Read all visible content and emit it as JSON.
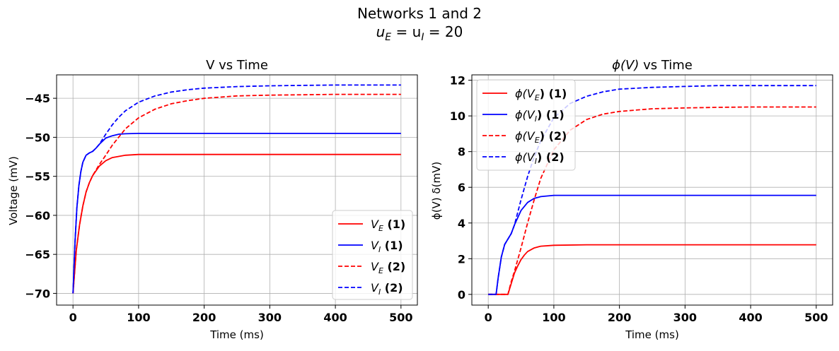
{
  "figure": {
    "suptitle_line1": "Networks 1 and 2",
    "suptitle_line2_base": "u",
    "suptitle_line2_sub1": "E",
    "suptitle_line2_mid": " = u",
    "suptitle_line2_sub2": "I",
    "suptitle_line2_end": " = 20"
  },
  "chart_data": [
    {
      "type": "line",
      "title": "V vs Time",
      "xlabel": "Time (ms)",
      "ylabel": "Voltage (mV)",
      "xlim": [
        -25,
        525
      ],
      "ylim": [
        -71.5,
        -42
      ],
      "xticks": [
        0,
        100,
        200,
        300,
        400,
        500
      ],
      "yticks": [
        -70,
        -65,
        -60,
        -55,
        -50,
        -45
      ],
      "grid": true,
      "legend_position": "lower-right",
      "series": [
        {
          "name": "V_E (1)",
          "label_base": "V",
          "label_sub": "E",
          "label_suffix": " (1)",
          "color": "#ff0000",
          "dash": "solid",
          "x": [
            0,
            5,
            10,
            15,
            20,
            25,
            30,
            40,
            50,
            60,
            80,
            100,
            150,
            200,
            300,
            400,
            500
          ],
          "y": [
            -70,
            -64.5,
            -61.2,
            -58.8,
            -57.0,
            -55.8,
            -54.9,
            -53.7,
            -53.0,
            -52.6,
            -52.3,
            -52.2,
            -52.2,
            -52.2,
            -52.2,
            -52.2,
            -52.2
          ]
        },
        {
          "name": "V_I (1)",
          "label_base": "V",
          "label_sub": "I",
          "label_suffix": " (1)",
          "color": "#0000ff",
          "dash": "solid",
          "x": [
            0,
            3,
            6,
            9,
            12,
            15,
            20,
            25,
            30,
            35,
            40,
            50,
            60,
            70,
            80,
            100,
            150,
            200,
            300,
            400,
            500
          ],
          "y": [
            -70,
            -63.5,
            -59.0,
            -56.2,
            -54.4,
            -53.2,
            -52.3,
            -52.0,
            -51.8,
            -51.4,
            -50.9,
            -50.1,
            -49.8,
            -49.6,
            -49.55,
            -49.5,
            -49.5,
            -49.5,
            -49.5,
            -49.5,
            -49.5
          ]
        },
        {
          "name": "V_E (2)",
          "label_base": "V",
          "label_sub": "E",
          "label_suffix": " (2)",
          "color": "#ff0000",
          "dash": "dashed",
          "x": [
            0,
            5,
            10,
            15,
            20,
            25,
            30,
            40,
            50,
            60,
            80,
            100,
            125,
            150,
            175,
            200,
            250,
            300,
            350,
            400,
            500
          ],
          "y": [
            -70,
            -64.5,
            -61.2,
            -58.8,
            -57.0,
            -55.8,
            -54.9,
            -53.5,
            -52.3,
            -51.0,
            -48.9,
            -47.5,
            -46.4,
            -45.7,
            -45.3,
            -45.0,
            -44.7,
            -44.6,
            -44.55,
            -44.5,
            -44.5
          ]
        },
        {
          "name": "V_I (2)",
          "label_base": "V",
          "label_sub": "I",
          "label_suffix": " (2)",
          "color": "#0000ff",
          "dash": "dashed",
          "x": [
            0,
            3,
            6,
            9,
            12,
            15,
            20,
            25,
            30,
            35,
            40,
            50,
            60,
            70,
            80,
            100,
            125,
            150,
            175,
            200,
            250,
            300,
            350,
            400,
            500
          ],
          "y": [
            -70,
            -63.5,
            -59.0,
            -56.2,
            -54.4,
            -53.2,
            -52.3,
            -52.0,
            -51.8,
            -51.4,
            -50.9,
            -49.6,
            -48.4,
            -47.4,
            -46.6,
            -45.5,
            -44.7,
            -44.2,
            -43.9,
            -43.7,
            -43.5,
            -43.4,
            -43.35,
            -43.3,
            -43.3
          ]
        }
      ]
    },
    {
      "type": "line",
      "title_prefix": "ϕ(V)",
      "title_suffix": " vs Time",
      "xlabel": "Time (ms)",
      "ylabel": "ϕ(V) δ(mV)",
      "xlim": [
        -25,
        525
      ],
      "ylim": [
        -0.6,
        12.3
      ],
      "xticks": [
        0,
        100,
        200,
        300,
        400,
        500
      ],
      "yticks": [
        0,
        2,
        4,
        6,
        8,
        10,
        12
      ],
      "grid": true,
      "legend_position": "upper-left",
      "series": [
        {
          "name": "ϕ(V_E) (1)",
          "label_base": "ϕ(V",
          "label_sub": "E",
          "label_suffix": ") (1)",
          "color": "#ff0000",
          "dash": "solid",
          "x": [
            0,
            30,
            35,
            40,
            45,
            50,
            55,
            60,
            70,
            80,
            100,
            150,
            200,
            300,
            400,
            500
          ],
          "y": [
            0,
            0,
            0.6,
            1.2,
            1.6,
            1.95,
            2.2,
            2.4,
            2.6,
            2.7,
            2.75,
            2.78,
            2.78,
            2.78,
            2.78,
            2.78
          ]
        },
        {
          "name": "ϕ(V_I) (1)",
          "label_base": "ϕ(V",
          "label_sub": "I",
          "label_suffix": ") (1)",
          "color": "#0000ff",
          "dash": "solid",
          "x": [
            0,
            12,
            15,
            20,
            25,
            30,
            35,
            40,
            50,
            60,
            70,
            80,
            100,
            150,
            200,
            300,
            400,
            500
          ],
          "y": [
            0,
            0,
            0.9,
            2.1,
            2.8,
            3.1,
            3.4,
            3.9,
            4.7,
            5.15,
            5.38,
            5.48,
            5.55,
            5.55,
            5.55,
            5.55,
            5.55,
            5.55
          ]
        },
        {
          "name": "ϕ(V_E) (2)",
          "label_base": "ϕ(V",
          "label_sub": "E",
          "label_suffix": ") (2)",
          "color": "#ff0000",
          "dash": "dashed",
          "x": [
            0,
            30,
            35,
            40,
            50,
            60,
            70,
            80,
            100,
            125,
            150,
            175,
            200,
            250,
            300,
            350,
            400,
            500
          ],
          "y": [
            0,
            0,
            0.7,
            1.3,
            2.6,
            4.0,
            5.3,
            6.5,
            8.1,
            9.2,
            9.8,
            10.1,
            10.25,
            10.4,
            10.45,
            10.48,
            10.5,
            10.5
          ]
        },
        {
          "name": "ϕ(V_I) (2)",
          "label_base": "ϕ(V",
          "label_sub": "I",
          "label_suffix": ") (2)",
          "color": "#0000ff",
          "dash": "dashed",
          "x": [
            0,
            12,
            15,
            20,
            25,
            30,
            35,
            40,
            50,
            60,
            70,
            80,
            100,
            125,
            150,
            175,
            200,
            250,
            300,
            350,
            400,
            500
          ],
          "y": [
            0,
            0,
            0.9,
            2.1,
            2.8,
            3.1,
            3.4,
            3.9,
            5.3,
            6.6,
            7.7,
            8.6,
            9.9,
            10.7,
            11.1,
            11.35,
            11.5,
            11.6,
            11.65,
            11.7,
            11.7,
            11.7
          ]
        }
      ]
    }
  ]
}
